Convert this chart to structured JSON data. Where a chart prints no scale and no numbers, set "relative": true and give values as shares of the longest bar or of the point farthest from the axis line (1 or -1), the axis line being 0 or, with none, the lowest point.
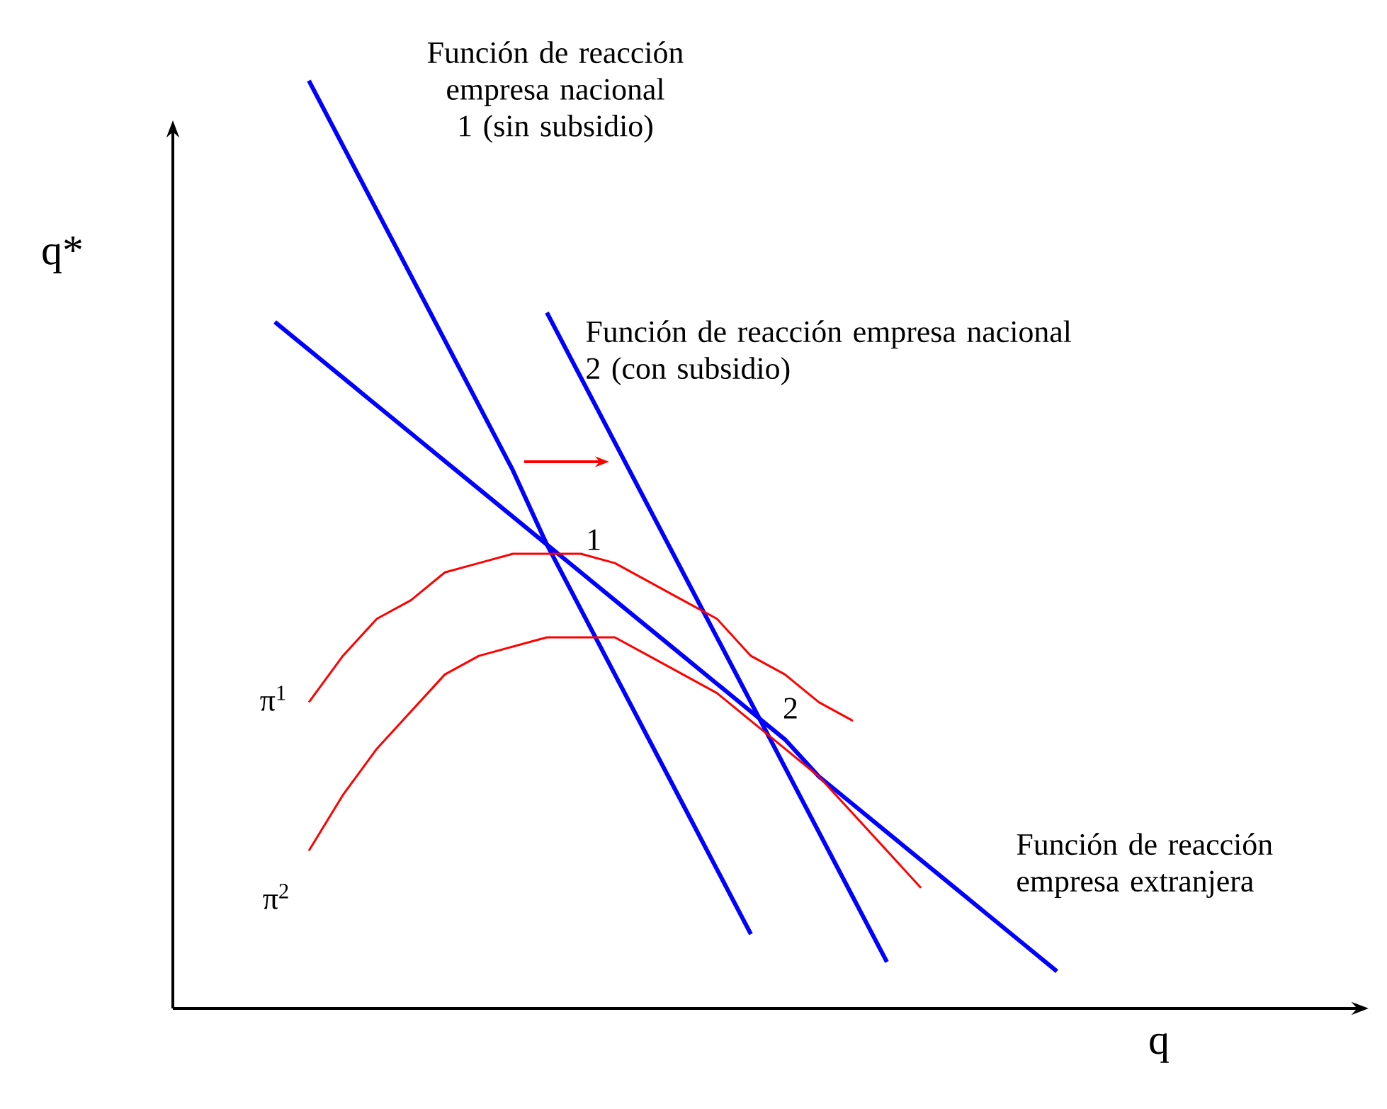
{
  "chart_data": {
    "type": "line",
    "relative": true,
    "xlabel": "q",
    "ylabel": "q*",
    "categories": [
      null,
      null,
      null,
      null,
      null,
      null,
      null,
      null,
      null,
      null,
      null,
      null,
      null,
      null,
      null,
      null,
      null,
      null,
      null,
      null,
      null,
      null,
      null,
      null,
      null,
      null,
      null,
      null,
      null,
      null,
      null,
      null,
      null,
      null,
      null,
      null
    ],
    "series": [
      {
        "name": "Función de reacción empresa extranjera",
        "color": "#0000ff",
        "values": [
          null,
          null,
          null,
          0.74,
          0.71,
          0.68,
          0.65,
          0.62,
          0.59,
          0.56,
          0.53,
          0.5,
          0.47,
          0.44,
          0.41,
          0.38,
          0.35,
          0.32,
          0.29,
          0.25,
          0.22,
          0.19,
          0.16,
          0.13,
          0.1,
          0.07,
          0.04,
          null,
          null,
          null,
          null,
          null,
          null,
          null,
          null,
          null
        ]
      },
      {
        "name": "Función de reacción empresa nacional 1 (sin subsidio)",
        "color": "#0000ff",
        "values": [
          null,
          null,
          null,
          null,
          1.0,
          0.93,
          0.86,
          0.79,
          0.72,
          0.65,
          0.58,
          0.5,
          0.43,
          0.36,
          0.29,
          0.22,
          0.15,
          0.08,
          null,
          null,
          null,
          null,
          null,
          null,
          null,
          null,
          null,
          null,
          null,
          null,
          null,
          null,
          null,
          null,
          null,
          null
        ]
      },
      {
        "name": "Función de reacción empresa nacional 2 (con subsidio)",
        "color": "#0000ff",
        "values": [
          null,
          null,
          null,
          null,
          null,
          null,
          null,
          null,
          null,
          null,
          null,
          0.75,
          0.68,
          0.61,
          0.54,
          0.47,
          0.4,
          0.33,
          0.26,
          0.19,
          0.12,
          0.05,
          null,
          null,
          null,
          null,
          null,
          null,
          null,
          null,
          null,
          null,
          null,
          null,
          null,
          null
        ]
      },
      {
        "name": "π$^{1}$",
        "color": "#ff0000",
        "values": [
          null,
          null,
          null,
          null,
          0.33,
          0.38,
          0.42,
          0.44,
          0.47,
          0.48,
          0.49,
          0.49,
          0.49,
          0.48,
          0.46,
          0.44,
          0.42,
          0.38,
          0.36,
          0.33,
          0.31,
          null,
          null,
          null,
          null,
          null,
          null,
          null,
          null,
          null,
          null,
          null,
          null,
          null,
          null,
          null
        ]
      },
      {
        "name": "π$^{2}$",
        "color": "#ff0000",
        "values": [
          null,
          null,
          null,
          null,
          0.17,
          0.23,
          0.28,
          0.32,
          0.36,
          0.38,
          0.39,
          0.4,
          0.4,
          0.4,
          0.38,
          0.36,
          0.34,
          0.31,
          0.28,
          0.25,
          0.21,
          0.17,
          0.13,
          null,
          null,
          null,
          null,
          null,
          null,
          null,
          null,
          null,
          null,
          null,
          null,
          null
        ]
      }
    ],
    "annotations": [
      "1",
      "2"
    ]
  }
}
